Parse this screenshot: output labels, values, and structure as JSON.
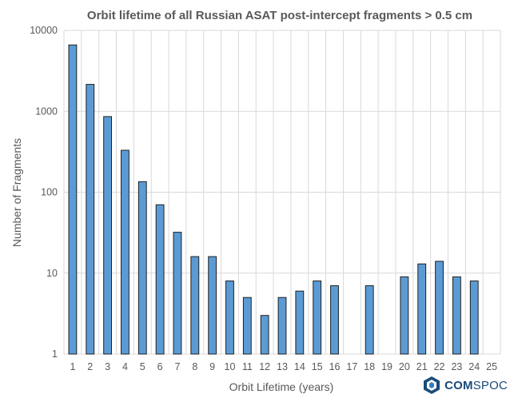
{
  "chart_data": {
    "type": "bar",
    "title": "Orbit lifetime of all Russian ASAT post-intercept fragments > 0.5 cm",
    "xlabel": "Orbit Lifetime (years)",
    "ylabel": "Number of Fragments",
    "yscale": "log",
    "ylim": [
      1,
      10000
    ],
    "yticks": [
      "1",
      "10",
      "100",
      "1000",
      "10000"
    ],
    "categories": [
      "1",
      "2",
      "3",
      "4",
      "5",
      "6",
      "7",
      "8",
      "9",
      "10",
      "11",
      "12",
      "13",
      "14",
      "15",
      "16",
      "17",
      "18",
      "19",
      "20",
      "21",
      "22",
      "23",
      "24",
      "25"
    ],
    "values": [
      6600,
      2150,
      860,
      330,
      135,
      70,
      32,
      16,
      16,
      8,
      5,
      3,
      5,
      6,
      8,
      7,
      null,
      7,
      null,
      9,
      13,
      14,
      9,
      8,
      null
    ],
    "grid": true,
    "bar_color": "#5b9bd5"
  },
  "logo": {
    "text_bold": "COM",
    "text_regular": "SPOC",
    "icon": "comspoc-cube-icon"
  }
}
